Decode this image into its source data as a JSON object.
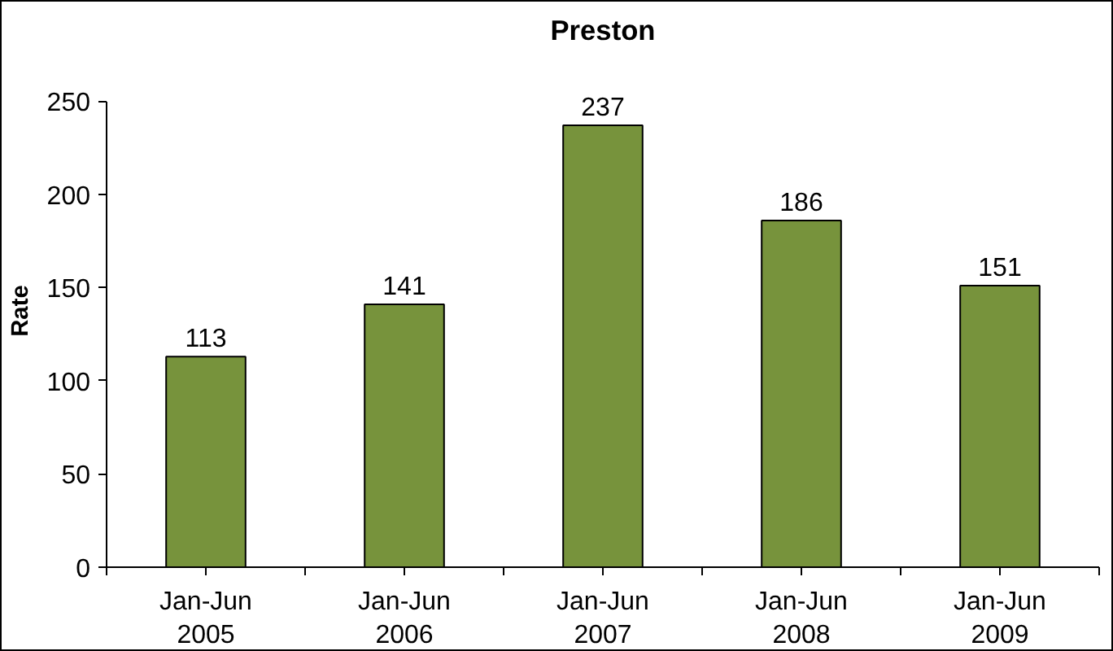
{
  "chart_data": {
    "type": "bar",
    "title": "Preston",
    "ylabel": "Rate",
    "categories": [
      "Jan-Jun\n2005",
      "Jan-Jun\n2006",
      "Jan-Jun\n2007",
      "Jan-Jun\n2008",
      "Jan-Jun\n2009"
    ],
    "values": [
      113,
      141,
      237,
      186,
      151
    ],
    "color": "#77933c",
    "ylim": [
      0,
      250
    ],
    "yticks": [
      0,
      50,
      100,
      150,
      200,
      250
    ],
    "grid": false,
    "data_labels": true
  }
}
